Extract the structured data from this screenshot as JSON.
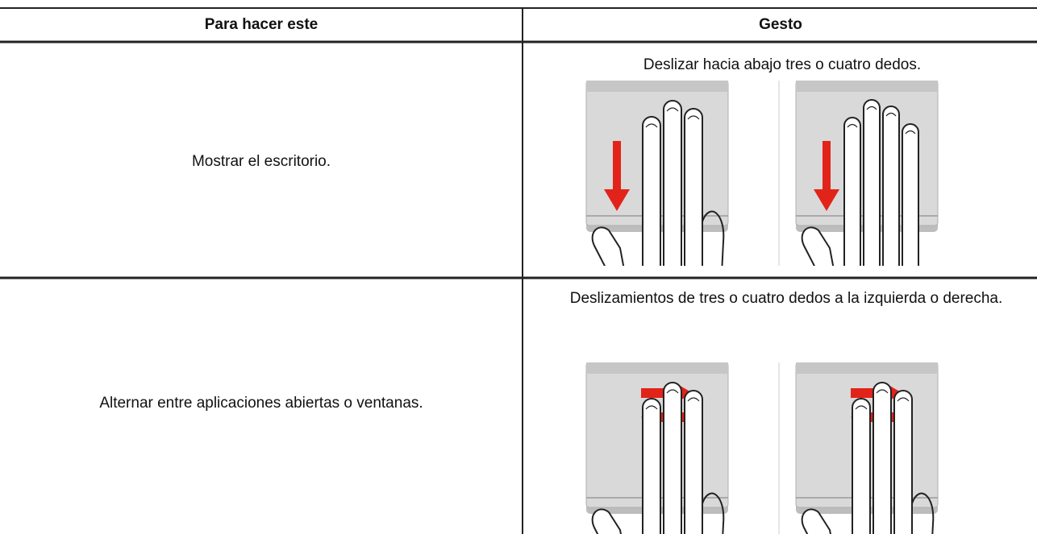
{
  "table": {
    "header": [
      "Para hacer este",
      "Gesto"
    ],
    "rows": [
      [
        "Mostrar el escritorio.",
        "Deslizar hacia abajo tres o cuatro dedos."
      ],
      [
        "Alternar entre aplicaciones abiertas o ventanas.",
        "Deslizamientos de tres o cuatro dedos a la izquierda o derecha."
      ]
    ]
  }
}
